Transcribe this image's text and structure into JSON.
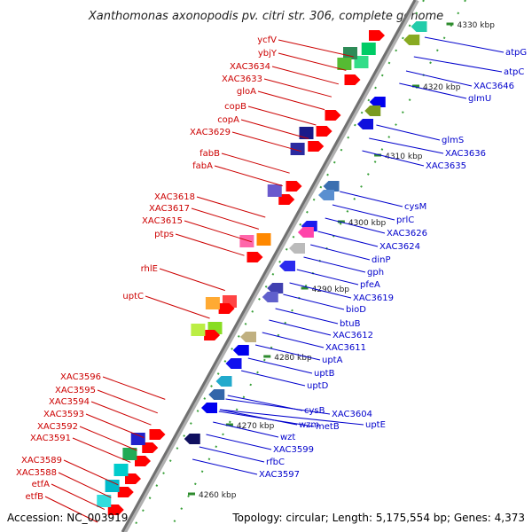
{
  "title": "Xanthomonas axonopodis pv. citri str. 306, complete genome",
  "footer": {
    "accession": "Accession: NC_003919",
    "summary": "Topology: circular; Length: 5,175,554 bp; Genes: 4,373"
  },
  "ticks": [
    "4330 kbp",
    "4320 kbp",
    "4310 kbp",
    "4300 kbp",
    "4290 kbp",
    "4280 kbp",
    "4270 kbp",
    "4260 kbp"
  ],
  "forward_labels": [
    "ycfV",
    "ybjY",
    "XAC3634",
    "XAC3633",
    "gloA",
    "copB",
    "copA",
    "XAC3629",
    "fabB",
    "fabA",
    "XAC3618",
    "XAC3617",
    "XAC3615",
    "ptps",
    "rhlE",
    "uptC",
    "XAC3596",
    "XAC3595",
    "XAC3594",
    "XAC3593",
    "XAC3592",
    "XAC3591",
    "XAC3589",
    "XAC3588",
    "etfA",
    "etfB"
  ],
  "reverse_labels": [
    "atpG",
    "atpC",
    "XAC3646",
    "glmU",
    "glmS",
    "XAC3636",
    "XAC3635",
    "cysM",
    "prlC",
    "XAC3626",
    "XAC3624",
    "dinP",
    "gph",
    "pfeA",
    "XAC3619",
    "bioD",
    "btuB",
    "XAC3612",
    "XAC3611",
    "uptA",
    "uptB",
    "uptD",
    "XAC3604",
    "cysB",
    "metB",
    "uptE",
    "wzm",
    "wzt",
    "XAC3599",
    "rfbC",
    "XAC3597"
  ],
  "colors": {
    "forward_label": "#cc0000",
    "reverse_label": "#0000cc",
    "backbone": "#808080",
    "tick": "#2e8b2e"
  }
}
